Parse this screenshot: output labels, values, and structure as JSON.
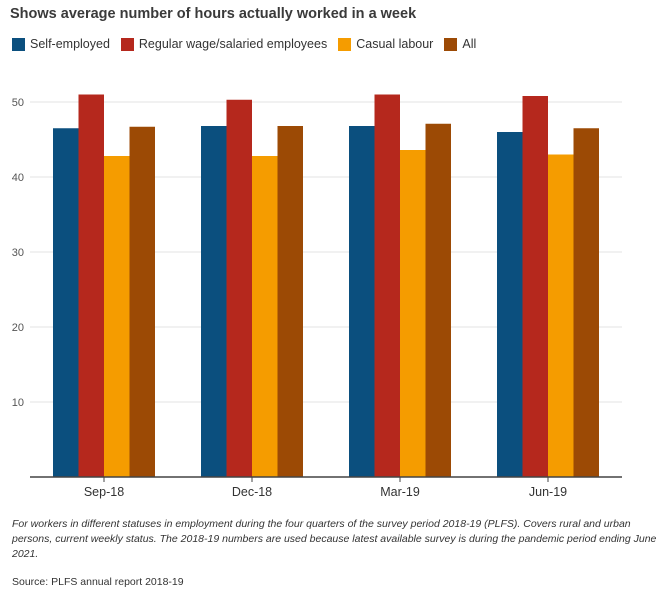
{
  "chart_data": {
    "type": "bar",
    "title": "Shows average number of hours actually worked in a week",
    "xlabel": "",
    "ylabel": "",
    "ylim": [
      0,
      50
    ],
    "yticks": [
      10,
      20,
      30,
      40,
      50
    ],
    "grid": true,
    "legend_position": "top-left",
    "categories": [
      "Sep-18",
      "Dec-18",
      "Mar-19",
      "Jun-19"
    ],
    "series": [
      {
        "name": "Self-employed",
        "color": "#0b4f7e",
        "values": [
          46.5,
          46.8,
          46.8,
          46.0
        ]
      },
      {
        "name": "Regular wage/salaried employees",
        "color": "#b5281d",
        "values": [
          51.0,
          50.3,
          51.0,
          50.8
        ]
      },
      {
        "name": "Casual labour",
        "color": "#f59c00",
        "values": [
          42.8,
          42.8,
          43.6,
          43.0
        ]
      },
      {
        "name": "All",
        "color": "#9c4a05",
        "values": [
          46.7,
          46.8,
          47.1,
          46.5
        ]
      }
    ]
  },
  "footnote": "For workers in different statuses in employment during the four quarters of the survey period 2018-19 (PLFS). Covers rural and urban persons, current weekly status. The 2018-19 numbers are used because latest available survey is during the pandemic period ending June 2021.",
  "source": "Source: PLFS annual report 2018-19"
}
